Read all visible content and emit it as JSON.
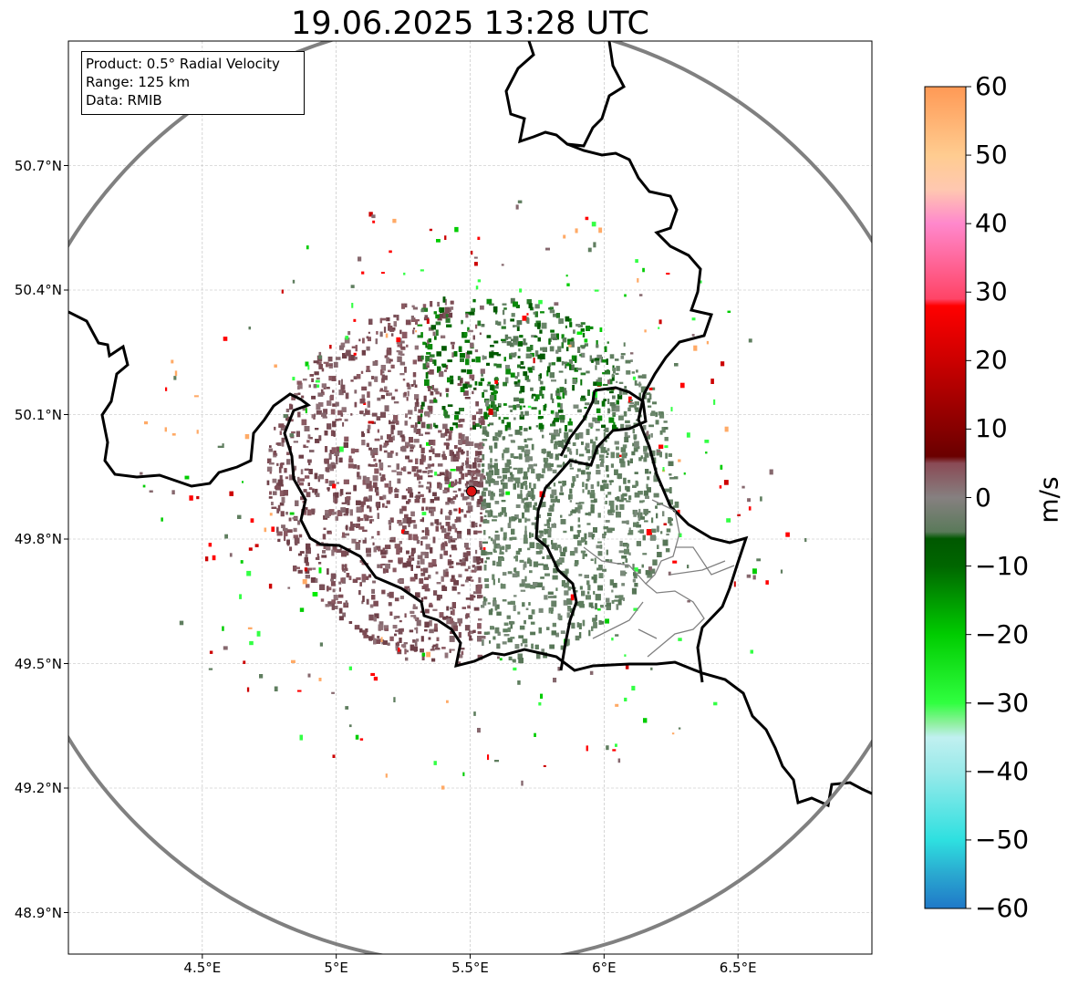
{
  "title": "19.06.2025 13:28 UTC",
  "info_box": {
    "line1": "Product: 0.5° Radial Velocity",
    "line2": "Range: 125 km",
    "line3": "Data: RMIB"
  },
  "map": {
    "lon_range": [
      4.0,
      7.0
    ],
    "lat_range": [
      48.8,
      51.0
    ],
    "lon_ticks": [
      {
        "value": 4.5,
        "label": "4.5°E"
      },
      {
        "value": 5.0,
        "label": "5°E"
      },
      {
        "value": 5.5,
        "label": "5.5°E"
      },
      {
        "value": 6.0,
        "label": "6°E"
      },
      {
        "value": 6.5,
        "label": "6.5°E"
      }
    ],
    "lat_ticks": [
      {
        "value": 50.7,
        "label": "50.7°N"
      },
      {
        "value": 50.4,
        "label": "50.4°N"
      },
      {
        "value": 50.1,
        "label": "50.1°N"
      },
      {
        "value": 49.8,
        "label": "49.8°N"
      },
      {
        "value": 49.5,
        "label": "49.5°N"
      },
      {
        "value": 49.2,
        "label": "49.2°N"
      },
      {
        "value": 48.9,
        "label": "48.9°N"
      }
    ],
    "grid": true,
    "radar_site": {
      "lon": 5.505,
      "lat": 49.915
    },
    "range_circle_color": "#808080",
    "radar_marker_color": "#dd1111"
  },
  "colorbar": {
    "label": "m/s",
    "vmin": -60,
    "vmax": 60,
    "ticks": [
      "60",
      "50",
      "40",
      "30",
      "20",
      "10",
      "0",
      "−10",
      "−20",
      "−30",
      "−40",
      "−50",
      "−60"
    ],
    "tick_values": [
      60,
      50,
      40,
      30,
      20,
      10,
      0,
      -10,
      -20,
      -30,
      -40,
      -50,
      -60
    ],
    "stops": [
      {
        "v": -60,
        "color": "#1f78c8"
      },
      {
        "v": -55,
        "color": "#2aa8d0"
      },
      {
        "v": -50,
        "color": "#2ee0e0"
      },
      {
        "v": -40,
        "color": "#9aeaea"
      },
      {
        "v": -35,
        "color": "#c0f0f0"
      },
      {
        "v": -33,
        "color": "#90f0a0"
      },
      {
        "v": -30,
        "color": "#30ff40"
      },
      {
        "v": -20,
        "color": "#00cc00"
      },
      {
        "v": -10,
        "color": "#006600"
      },
      {
        "v": -6,
        "color": "#005800"
      },
      {
        "v": -5,
        "color": "#5a7a5a"
      },
      {
        "v": 0,
        "color": "#868080"
      },
      {
        "v": 5,
        "color": "#8a4a55"
      },
      {
        "v": 6,
        "color": "#6a0000"
      },
      {
        "v": 20,
        "color": "#cc0000"
      },
      {
        "v": 28,
        "color": "#ff0000"
      },
      {
        "v": 29,
        "color": "#ff4466"
      },
      {
        "v": 40,
        "color": "#ff88cc"
      },
      {
        "v": 45,
        "color": "#ffc8b0"
      },
      {
        "v": 50,
        "color": "#ffcc90"
      },
      {
        "v": 60,
        "color": "#ff9955"
      }
    ]
  }
}
